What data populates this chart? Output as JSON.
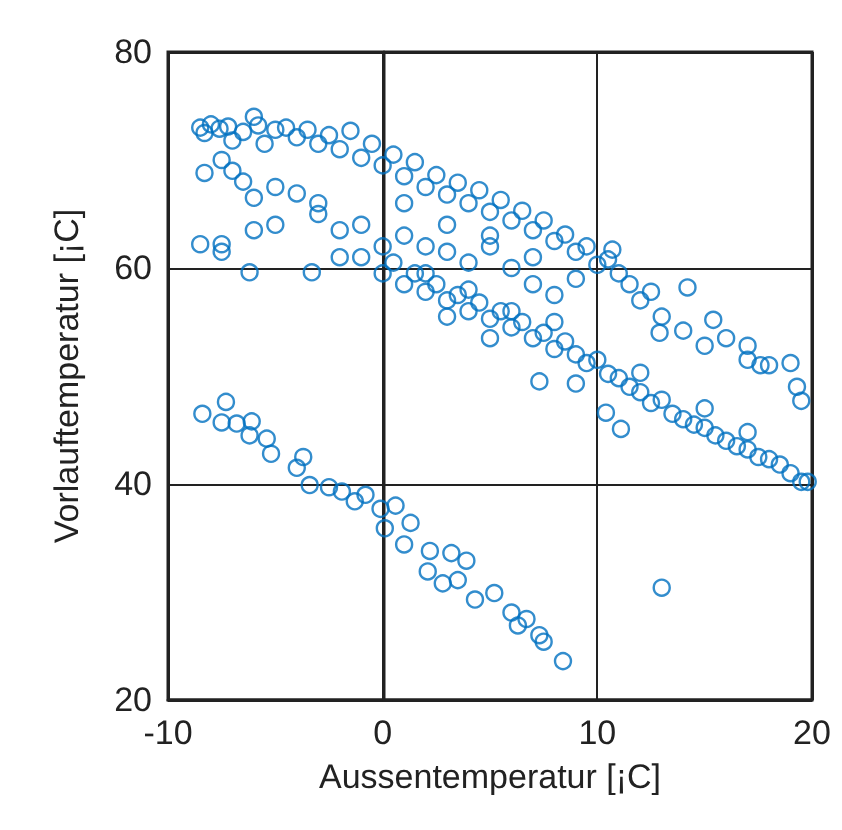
{
  "chart_data": {
    "type": "scatter",
    "xlabel": "Aussentemperatur [¡C]",
    "ylabel": "Vorlauftemperatur [¡C]",
    "xlim": [
      -10,
      20
    ],
    "ylim": [
      20,
      80
    ],
    "xticks": [
      -10,
      0,
      10,
      20
    ],
    "yticks": [
      20,
      40,
      60,
      80
    ],
    "grid": true,
    "marker": "circle",
    "color": "#0070c0",
    "x": [
      -8.5,
      -8.3,
      -8,
      -7.6,
      -7.2,
      -7,
      -6.5,
      -6,
      -5.8,
      -5.5,
      -5,
      -4.5,
      -4,
      -3.5,
      -3,
      -2.5,
      -2,
      -1.5,
      -1,
      -0.5,
      0,
      0.5,
      1,
      1.5,
      2,
      2.5,
      3,
      3.5,
      4,
      4.5,
      5,
      5.5,
      6,
      6.5,
      7,
      7.5,
      8,
      8.5,
      9,
      9.5,
      10,
      10.5,
      11,
      11.5,
      12,
      12.5,
      13,
      14,
      15,
      16,
      17,
      18,
      19,
      19.5,
      19.3,
      10.7,
      14.2,
      12.9,
      15.4,
      17,
      17.6,
      -8.3,
      -7.5,
      -7,
      -6.5,
      -6,
      -5,
      -4,
      -3,
      -2,
      -1,
      -6,
      -5,
      -7.5,
      -6.2,
      -3.3,
      -8.5,
      -7.5,
      -2,
      0,
      1,
      2,
      3,
      4,
      5,
      6,
      7,
      8,
      -3,
      1,
      3,
      5,
      7,
      9,
      -1,
      0,
      0.5,
      1,
      1.5,
      2,
      2.5,
      3,
      3.5,
      4,
      4.5,
      5,
      5.5,
      6,
      6.5,
      7,
      7.5,
      8,
      8.5,
      9,
      9.5,
      10,
      10.5,
      11,
      11.5,
      12,
      12.5,
      13,
      13.5,
      14,
      14.5,
      15,
      15.5,
      16,
      16.5,
      17,
      17.5,
      18,
      18.5,
      19,
      19.5,
      19.8,
      17,
      15,
      12,
      8,
      6,
      4,
      2,
      3,
      5,
      9,
      7.3,
      10.4,
      11.1,
      -8.4,
      -7.3,
      -7.5,
      -6.8,
      -6.1,
      -6.2,
      -5.4,
      -5.2,
      -3.7,
      -4,
      -3.4,
      -2.5,
      -1.9,
      -1.3,
      -0.8,
      -0.1,
      0.6,
      0.1,
      1.3,
      1,
      2.2,
      3.2,
      2.1,
      2.8,
      3.9,
      3.5,
      4.3,
      5.2,
      6,
      6.3,
      6.7,
      7.3,
      7.5,
      8.4,
      13
    ],
    "values": [
      73,
      72.5,
      73.3,
      72.9,
      73.1,
      71.8,
      72.6,
      74,
      73.2,
      71.5,
      72.8,
      73,
      72.1,
      72.8,
      71.5,
      72.3,
      71,
      72.7,
      70.2,
      71.5,
      69.5,
      70.5,
      68.5,
      69.8,
      67.5,
      68.6,
      66.8,
      67.9,
      66,
      67.2,
      65.2,
      66.3,
      64.4,
      65.3,
      63.5,
      64.4,
      62.5,
      63.1,
      61.5,
      62,
      60.3,
      60.8,
      59.5,
      58.5,
      57,
      57.8,
      55.5,
      54.2,
      52.8,
      53.5,
      51.5,
      51,
      51.2,
      47.7,
      49,
      61.7,
      58.2,
      54,
      55.2,
      52.8,
      51,
      68.8,
      70,
      69,
      68,
      66.5,
      67.5,
      66.9,
      65,
      63.5,
      64,
      63.5,
      64,
      61.5,
      59.6,
      59.6,
      62.2,
      62.2,
      61,
      62,
      63,
      62,
      61.5,
      60.5,
      62,
      60,
      58.5,
      57.5,
      66,
      66,
      64,
      63,
      61,
      59,
      61,
      59.5,
      60.5,
      58.5,
      59.5,
      57.8,
      58.5,
      57,
      57.5,
      56,
      56.8,
      55.3,
      56,
      54.5,
      55,
      53.5,
      54,
      52.5,
      53.2,
      52,
      51.2,
      51.5,
      50.2,
      49.8,
      49,
      48.5,
      47.5,
      47.8,
      46.5,
      46,
      45.5,
      45.2,
      44.5,
      44,
      43.5,
      43.2,
      42.5,
      42.3,
      41.8,
      41,
      40.2,
      40.2,
      44.8,
      47,
      50.3,
      55,
      56,
      58,
      59.5,
      55.5,
      53.5,
      49.3,
      49.5,
      46.6,
      45.1,
      46.5,
      47.6,
      45.7,
      45.6,
      45.8,
      44.5,
      44.2,
      42.8,
      42.5,
      41.5,
      39.9,
      39.7,
      39.3,
      38.4,
      39,
      37.7,
      38,
      35.9,
      36.4,
      34.4,
      33.8,
      33.6,
      31.9,
      30.8,
      32.9,
      31.1,
      29.3,
      29.9,
      28.1,
      26.9,
      27.5,
      26,
      25.4,
      23.6,
      30.4
    ]
  }
}
